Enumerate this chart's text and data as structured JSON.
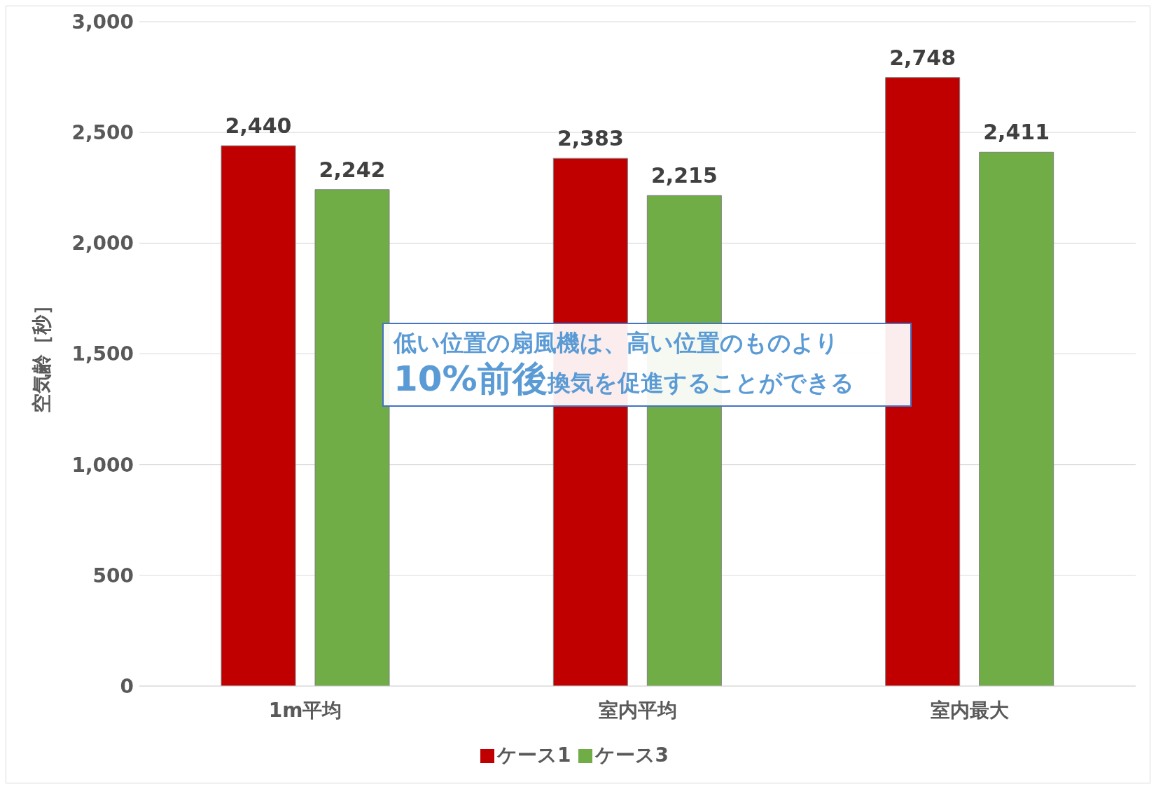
{
  "chart_data": {
    "type": "bar",
    "ylabel": "空気齢［秒］",
    "categories": [
      "1m平均",
      "室内平均",
      "室内最大"
    ],
    "series": [
      {
        "name": "ケース1",
        "color": "#c00000",
        "values": [
          2440,
          2383,
          2748
        ],
        "value_labels": [
          "2,440",
          "2,383",
          "2,748"
        ]
      },
      {
        "name": "ケース3",
        "color": "#70ad47",
        "values": [
          2242,
          2215,
          2411
        ],
        "value_labels": [
          "2,242",
          "2,215",
          "2,411"
        ]
      }
    ],
    "ylim": [
      0,
      3000
    ],
    "yticks": [
      {
        "value": 0,
        "label": "0"
      },
      {
        "value": 500,
        "label": "500"
      },
      {
        "value": 1000,
        "label": "1,000"
      },
      {
        "value": 1500,
        "label": "1,500"
      },
      {
        "value": 2000,
        "label": "2,000"
      },
      {
        "value": 2500,
        "label": "2,500"
      },
      {
        "value": 3000,
        "label": "3,000"
      }
    ],
    "grid": "y",
    "legend": "bottom",
    "annotations": [
      "低い位置の扇風機は、高い位置のものより",
      "10%前後",
      "換気を促進することができる"
    ]
  }
}
